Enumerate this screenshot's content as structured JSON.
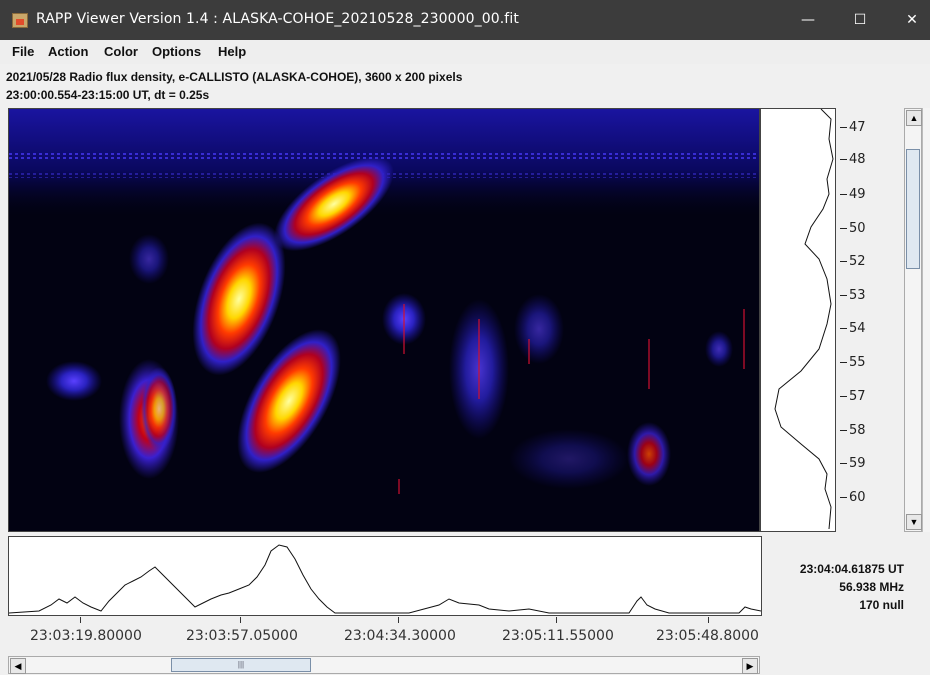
{
  "window": {
    "title": "RAPP Viewer Version 1.4 : ALASKA-COHOE_20210528_230000_00.fit",
    "minimize_glyph": "—",
    "maximize_glyph": "☐",
    "close_glyph": "✕"
  },
  "menu": [
    "File",
    "Action",
    "Color",
    "Options",
    "Help"
  ],
  "info": {
    "line1": "2021/05/28  Radio flux density, e-CALLISTO (ALASKA-COHOE),  3600 x 200 pixels",
    "line2": "23:00:00.554-23:15:00 UT,  dt = 0.25s"
  },
  "frequency_ticks": [
    "47",
    "48",
    "49",
    "50",
    "52",
    "53",
    "54",
    "55",
    "57",
    "58",
    "59",
    "60"
  ],
  "time_ticks": [
    "23:03:19.80000",
    "23:03:57.05000",
    "23:04:34.30000",
    "23:05:11.55000",
    "23:05:48.8000"
  ],
  "readout": {
    "time": "23:04:04.61875 UT",
    "freq": "56.938 MHz",
    "value": "170 null"
  },
  "colors": {
    "titlebar": "#3c3c3c",
    "spectrogram_background": "#020212"
  },
  "icons": {
    "app": "java-cup-icon",
    "scroll_up": "arrow-up-icon",
    "scroll_down": "arrow-down-icon",
    "scroll_left": "arrow-left-icon",
    "scroll_right": "arrow-right-icon"
  }
}
